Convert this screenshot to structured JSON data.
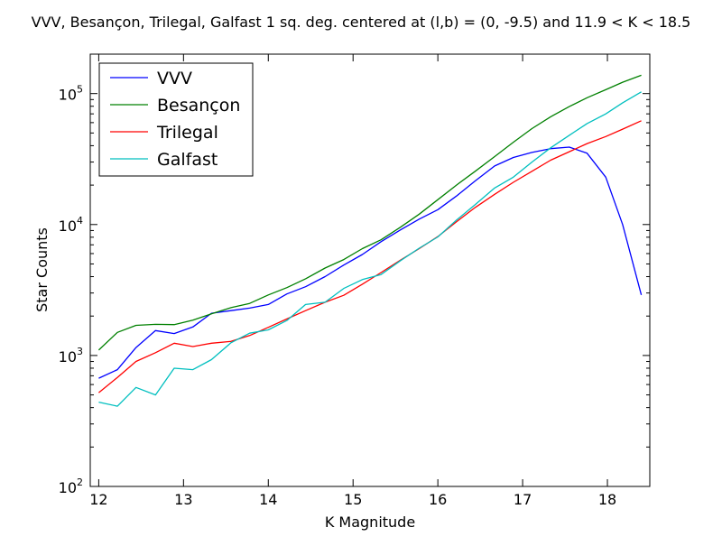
{
  "chart_data": {
    "type": "line",
    "title": "VVV, Besançon, Trilegal, Galfast 1 sq. deg. centered at (l,b) = (0, -9.5) and 11.9 < K < 18.5",
    "xlabel": "K Magnitude",
    "ylabel": "Star Counts",
    "xlim": [
      11.9,
      18.5
    ],
    "ylim": [
      100,
      200000
    ],
    "yscale": "log",
    "xticks": [
      12,
      13,
      14,
      15,
      16,
      17,
      18
    ],
    "xtick_labels": [
      "12",
      "13",
      "14",
      "15",
      "16",
      "17",
      "18"
    ],
    "yticks": [
      100,
      1000,
      10000,
      100000
    ],
    "ytick_base": [
      "10",
      "10",
      "10",
      "10"
    ],
    "ytick_exp": [
      "2",
      "3",
      "4",
      "5"
    ],
    "grid": false,
    "legend_position": "top-left",
    "series": [
      {
        "name": "VVV",
        "color": "#0000ff",
        "x": [
          12.0,
          12.22,
          12.44,
          12.67,
          12.89,
          13.11,
          13.33,
          13.56,
          13.78,
          14.0,
          14.22,
          14.44,
          14.67,
          14.89,
          15.11,
          15.33,
          15.56,
          15.78,
          16.0,
          16.22,
          16.44,
          16.67,
          16.89,
          17.11,
          17.33,
          17.55,
          17.76,
          17.98,
          18.18,
          18.4
        ],
        "y": [
          670,
          780,
          1150,
          1550,
          1470,
          1650,
          2100,
          2200,
          2300,
          2450,
          2950,
          3350,
          4000,
          4900,
          5900,
          7400,
          9100,
          11000,
          13000,
          16500,
          21500,
          28000,
          32500,
          35500,
          38000,
          39000,
          35000,
          23000,
          10000,
          2900
        ]
      },
      {
        "name": "Besançon",
        "color": "#008000",
        "x": [
          12.0,
          12.22,
          12.44,
          12.67,
          12.89,
          13.11,
          13.33,
          13.56,
          13.78,
          14.0,
          14.22,
          14.44,
          14.67,
          14.89,
          15.11,
          15.33,
          15.56,
          15.78,
          16.0,
          16.22,
          16.44,
          16.67,
          16.89,
          17.11,
          17.33,
          17.55,
          17.76,
          17.98,
          18.18,
          18.4
        ],
        "y": [
          1100,
          1500,
          1700,
          1730,
          1720,
          1860,
          2080,
          2320,
          2500,
          2900,
          3300,
          3850,
          4650,
          5400,
          6550,
          7650,
          9550,
          12000,
          15500,
          20000,
          25500,
          33000,
          42500,
          54000,
          66500,
          79500,
          93000,
          107000,
          122000,
          138000
        ]
      },
      {
        "name": "Trilegal",
        "color": "#ff0000",
        "x": [
          12.0,
          12.22,
          12.44,
          12.67,
          12.89,
          13.11,
          13.33,
          13.56,
          13.78,
          14.0,
          14.22,
          14.44,
          14.67,
          14.89,
          15.11,
          15.33,
          15.56,
          15.78,
          16.0,
          16.22,
          16.44,
          16.67,
          16.89,
          17.11,
          17.33,
          17.55,
          17.76,
          17.98,
          18.18,
          18.4
        ],
        "y": [
          520,
          680,
          900,
          1050,
          1240,
          1170,
          1240,
          1280,
          1420,
          1640,
          1900,
          2200,
          2550,
          2880,
          3500,
          4300,
          5350,
          6550,
          8100,
          10500,
          13500,
          17000,
          21000,
          25500,
          31000,
          36000,
          41500,
          47000,
          53500,
          62000
        ]
      },
      {
        "name": "Galfast",
        "color": "#00bfbf",
        "x": [
          12.0,
          12.22,
          12.44,
          12.67,
          12.89,
          13.11,
          13.33,
          13.56,
          13.78,
          14.0,
          14.22,
          14.44,
          14.67,
          14.89,
          15.11,
          15.33,
          15.56,
          15.78,
          16.0,
          16.22,
          16.44,
          16.67,
          16.89,
          17.11,
          17.33,
          17.55,
          17.76,
          17.98,
          18.18,
          18.4
        ],
        "y": [
          440,
          410,
          570,
          500,
          800,
          780,
          930,
          1250,
          1480,
          1570,
          1850,
          2450,
          2550,
          3250,
          3800,
          4150,
          5300,
          6600,
          8050,
          10800,
          14200,
          19000,
          23000,
          30000,
          38500,
          48000,
          59000,
          70000,
          85000,
          103000
        ]
      }
    ]
  }
}
